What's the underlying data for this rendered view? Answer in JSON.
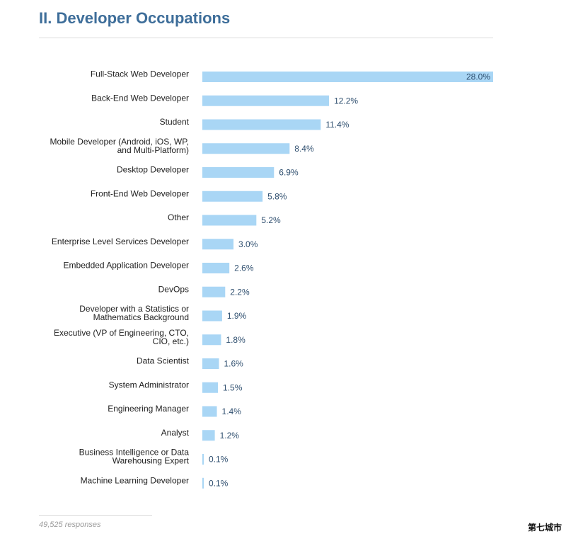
{
  "header": {
    "title": "II. Developer Occupations"
  },
  "footer": {
    "responses": "49,525 responses"
  },
  "watermark": {
    "text": "第七城市"
  },
  "colors": {
    "bar": "#a9d6f5",
    "label": "#222222",
    "value": "#2f4f6f",
    "title": "#3e6e9a"
  },
  "chart_data": {
    "type": "bar",
    "orientation": "horizontal",
    "title": "II. Developer Occupations",
    "xlim": [
      0,
      28.0
    ],
    "grid": false,
    "legend": "none",
    "categories": [
      [
        "Full-Stack Web Developer"
      ],
      [
        "Back-End Web Developer"
      ],
      [
        "Student"
      ],
      [
        "Mobile Developer (Android, iOS, WP,",
        "and Multi-Platform)"
      ],
      [
        "Desktop Developer"
      ],
      [
        "Front-End Web Developer"
      ],
      [
        "Other"
      ],
      [
        "Enterprise Level Services Developer"
      ],
      [
        "Embedded Application Developer"
      ],
      [
        "DevOps"
      ],
      [
        "Developer with a Statistics or",
        "Mathematics Background"
      ],
      [
        "Executive (VP of Engineering, CTO,",
        "CIO, etc.)"
      ],
      [
        "Data Scientist"
      ],
      [
        "System Administrator"
      ],
      [
        "Engineering Manager"
      ],
      [
        "Analyst"
      ],
      [
        "Business Intelligence or Data",
        "Warehousing Expert"
      ],
      [
        "Machine Learning Developer"
      ]
    ],
    "values": [
      28.0,
      12.2,
      11.4,
      8.4,
      6.9,
      5.8,
      5.2,
      3.0,
      2.6,
      2.2,
      1.9,
      1.8,
      1.6,
      1.5,
      1.4,
      1.2,
      0.1,
      0.1
    ],
    "value_labels": [
      "28.0%",
      "12.2%",
      "11.4%",
      "8.4%",
      "6.9%",
      "5.8%",
      "5.2%",
      "3.0%",
      "2.6%",
      "2.2%",
      "1.9%",
      "1.8%",
      "1.6%",
      "1.5%",
      "1.4%",
      "1.2%",
      "0.1%",
      "0.1%"
    ]
  }
}
